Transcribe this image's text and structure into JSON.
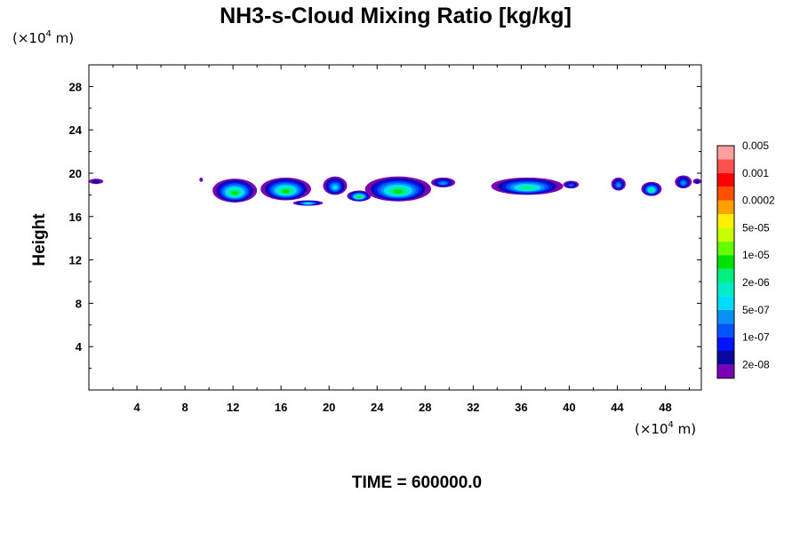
{
  "chart_data": {
    "type": "heatmap",
    "title": "NH3-s-Cloud Mixing Ratio [kg/kg]",
    "xlabel": "",
    "ylabel": "Height",
    "x_unit": {
      "prefix": "(×10",
      "exp": "4",
      "suffix": " m)"
    },
    "y_unit": {
      "prefix": "(×10",
      "exp": "4",
      "suffix": " m)"
    },
    "xlim": [
      0,
      51
    ],
    "ylim": [
      0,
      30
    ],
    "xticks": [
      4,
      8,
      12,
      16,
      20,
      24,
      28,
      32,
      36,
      40,
      44,
      48
    ],
    "yticks": [
      4,
      8,
      12,
      16,
      20,
      24,
      28
    ],
    "xtick_labels": [
      "4",
      "8",
      "12",
      "16",
      "20",
      "24",
      "28",
      "32",
      "36",
      "40",
      "44",
      "48"
    ],
    "ytick_labels": [
      "4",
      "8",
      "12",
      "16",
      "20",
      "24",
      "28"
    ],
    "colorbar": {
      "colors": [
        "#7B00B5",
        "#08089E",
        "#0014FF",
        "#0055FF",
        "#0A90F5",
        "#00DCFF",
        "#00EBC8",
        "#00F080",
        "#00E100",
        "#64FF00",
        "#C8FF00",
        "#FFF000",
        "#FFA000",
        "#FF5000",
        "#FF0000",
        "#FF5050",
        "#FFA0A0"
      ],
      "labels": [
        "2e-08",
        "1e-07",
        "5e-07",
        "2e-06",
        "1e-05",
        "5e-05",
        "0.0002",
        "0.001",
        "0.005"
      ]
    },
    "cloud_blobs": [
      {
        "x0": 0.0,
        "x1": 1.2,
        "ytop": 19.5,
        "ybot": 19.0,
        "peak": 1
      },
      {
        "x0": 9.2,
        "x1": 9.5,
        "ytop": 19.6,
        "ybot": 19.2,
        "peak": 0
      },
      {
        "x0": 10.3,
        "x1": 14.0,
        "ytop": 19.5,
        "ybot": 17.3,
        "peak": 8
      },
      {
        "x0": 14.3,
        "x1": 18.5,
        "ytop": 19.6,
        "ybot": 17.5,
        "peak": 8
      },
      {
        "x0": 17.0,
        "x1": 19.5,
        "ytop": 17.5,
        "ybot": 17.0,
        "peak": 6
      },
      {
        "x0": 19.5,
        "x1": 21.5,
        "ytop": 19.7,
        "ybot": 18.0,
        "peak": 5
      },
      {
        "x0": 21.5,
        "x1": 23.5,
        "ytop": 18.4,
        "ybot": 17.4,
        "peak": 8
      },
      {
        "x0": 23.0,
        "x1": 28.5,
        "ytop": 19.7,
        "ybot": 17.4,
        "peak": 8
      },
      {
        "x0": 28.5,
        "x1": 30.5,
        "ytop": 19.6,
        "ybot": 18.7,
        "peak": 4
      },
      {
        "x0": 33.5,
        "x1": 39.5,
        "ytop": 19.6,
        "ybot": 18.0,
        "peak": 7
      },
      {
        "x0": 39.5,
        "x1": 40.8,
        "ytop": 19.3,
        "ybot": 18.6,
        "peak": 3
      },
      {
        "x0": 43.5,
        "x1": 44.7,
        "ytop": 19.6,
        "ybot": 18.4,
        "peak": 4
      },
      {
        "x0": 46.0,
        "x1": 47.7,
        "ytop": 19.2,
        "ybot": 17.9,
        "peak": 7
      },
      {
        "x0": 48.8,
        "x1": 50.2,
        "ytop": 19.8,
        "ybot": 18.6,
        "peak": 4
      },
      {
        "x0": 50.3,
        "x1": 51.0,
        "ytop": 19.5,
        "ybot": 19.0,
        "peak": 1
      }
    ]
  },
  "footer": {
    "time_label": "TIME = 600000.0"
  }
}
